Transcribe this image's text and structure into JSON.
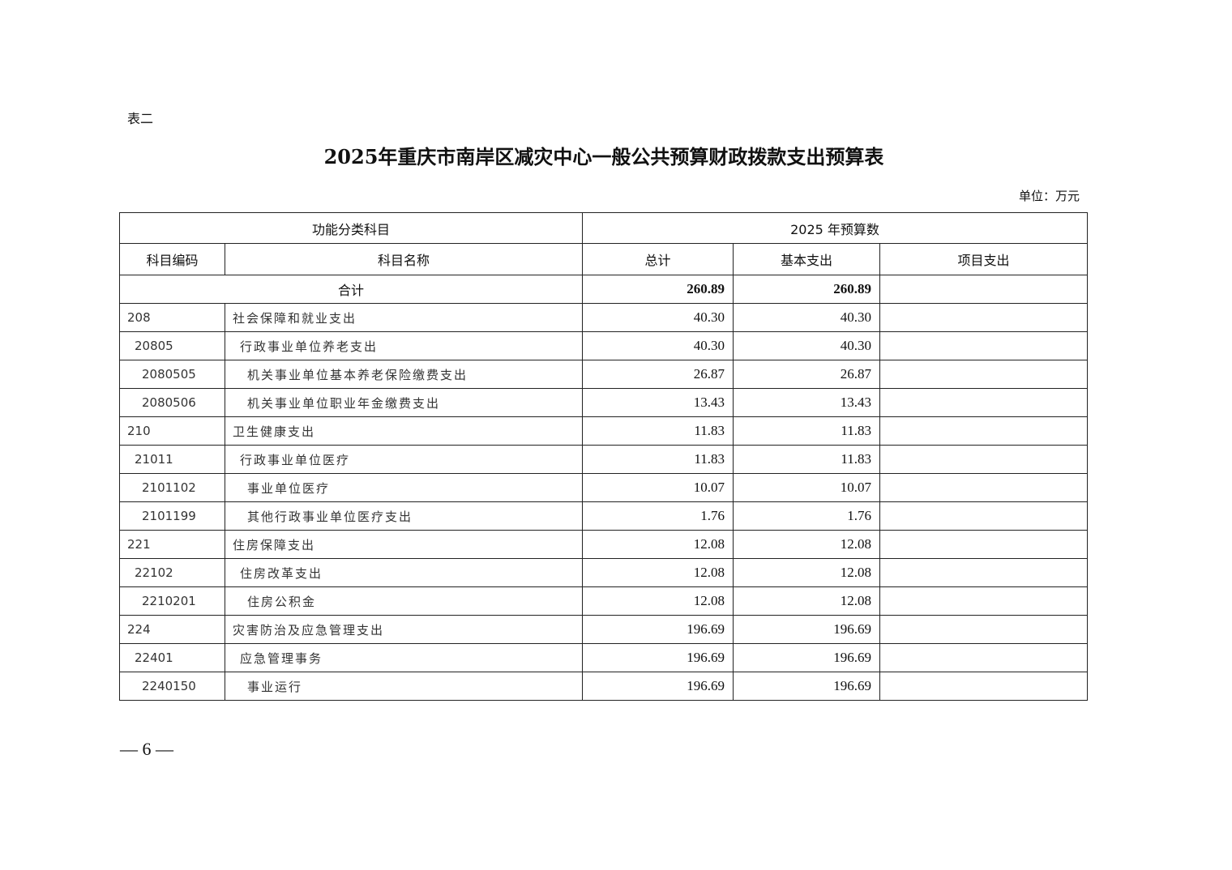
{
  "doc": {
    "label": "表二",
    "title": "2025年重庆市南岸区减灾中心一般公共预算财政拨款支出预算表",
    "unit": "单位：万元",
    "page_number": "— 6 —"
  },
  "table": {
    "header_group_left": "功能分类科目",
    "header_group_right": "2025 年预算数",
    "columns": [
      "科目编码",
      "科目名称",
      "总计",
      "基本支出",
      "项目支出"
    ],
    "total": {
      "label": "合计",
      "total": "260.89",
      "basic": "260.89",
      "project": ""
    },
    "rows": [
      {
        "code": "208",
        "name": "社会保障和就业支出",
        "total": "40.30",
        "basic": "40.30",
        "project": "",
        "level": 0
      },
      {
        "code": "20805",
        "name": "行政事业单位养老支出",
        "total": "40.30",
        "basic": "40.30",
        "project": "",
        "level": 1
      },
      {
        "code": "2080505",
        "name": "机关事业单位基本养老保险缴费支出",
        "total": "26.87",
        "basic": "26.87",
        "project": "",
        "level": 2
      },
      {
        "code": "2080506",
        "name": "机关事业单位职业年金缴费支出",
        "total": "13.43",
        "basic": "13.43",
        "project": "",
        "level": 2
      },
      {
        "code": "210",
        "name": "卫生健康支出",
        "total": "11.83",
        "basic": "11.83",
        "project": "",
        "level": 0
      },
      {
        "code": "21011",
        "name": "行政事业单位医疗",
        "total": "11.83",
        "basic": "11.83",
        "project": "",
        "level": 1
      },
      {
        "code": "2101102",
        "name": "事业单位医疗",
        "total": "10.07",
        "basic": "10.07",
        "project": "",
        "level": 2
      },
      {
        "code": "2101199",
        "name": "其他行政事业单位医疗支出",
        "total": "1.76",
        "basic": "1.76",
        "project": "",
        "level": 2
      },
      {
        "code": "221",
        "name": "住房保障支出",
        "total": "12.08",
        "basic": "12.08",
        "project": "",
        "level": 0
      },
      {
        "code": "22102",
        "name": "住房改革支出",
        "total": "12.08",
        "basic": "12.08",
        "project": "",
        "level": 1
      },
      {
        "code": "2210201",
        "name": "住房公积金",
        "total": "12.08",
        "basic": "12.08",
        "project": "",
        "level": 2
      },
      {
        "code": "224",
        "name": "灾害防治及应急管理支出",
        "total": "196.69",
        "basic": "196.69",
        "project": "",
        "level": 0
      },
      {
        "code": "22401",
        "name": "应急管理事务",
        "total": "196.69",
        "basic": "196.69",
        "project": "",
        "level": 1
      },
      {
        "code": "2240150",
        "name": "事业运行",
        "total": "196.69",
        "basic": "196.69",
        "project": "",
        "level": 2
      }
    ]
  }
}
